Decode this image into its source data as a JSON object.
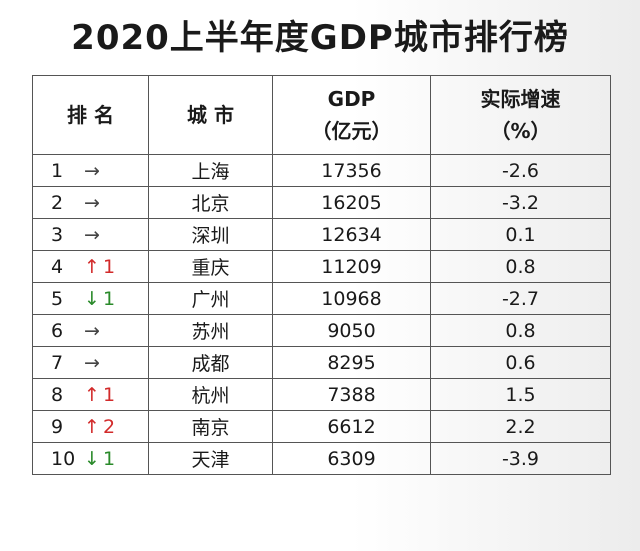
{
  "title": "2020上半年度GDP城市排行榜",
  "table": {
    "header": [
      [
        "排 名"
      ],
      [
        "城 市"
      ],
      [
        "GDP",
        "（亿元）"
      ],
      [
        "实际增速",
        "（%）"
      ]
    ],
    "rows": [
      {
        "rank": 1,
        "arrow": "→",
        "city": "上海",
        "gdp": 17356,
        "growth": -2.6
      },
      {
        "rank": 2,
        "arrow": "→",
        "city": "北京",
        "gdp": 16205,
        "growth": -3.2
      },
      {
        "rank": 3,
        "arrow": "→",
        "city": "深圳",
        "gdp": 12634,
        "growth": 0.1
      },
      {
        "rank": 4,
        "arrow": "↑",
        "change": 1,
        "city": "重庆",
        "gdp": 11209,
        "growth": 0.8
      },
      {
        "rank": 5,
        "arrow": "↓",
        "change": 1,
        "city": "广州",
        "gdp": 10968,
        "growth": -2.7
      },
      {
        "rank": 6,
        "arrow": "→",
        "city": "苏州",
        "gdp": 9050,
        "growth": 0.8
      },
      {
        "rank": 7,
        "arrow": "→",
        "city": "成都",
        "gdp": 8295,
        "growth": 0.6
      },
      {
        "rank": 8,
        "arrow": "↑",
        "change": 1,
        "city": "杭州",
        "gdp": 7388,
        "growth": 1.5
      },
      {
        "rank": 9,
        "arrow": "↑",
        "change": 2,
        "city": "南京",
        "gdp": 6612,
        "growth": 2.2
      },
      {
        "rank": 10,
        "arrow": "↓",
        "change": 1,
        "city": "天津",
        "gdp": 6309,
        "growth": -3.9
      }
    ]
  }
}
